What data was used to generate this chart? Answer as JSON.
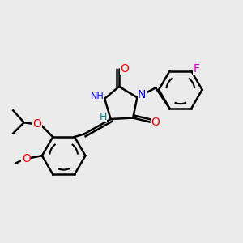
{
  "background_color": "#ebebeb",
  "atom_colors": {
    "C": "#000000",
    "N": "#0000ff",
    "O": "#ff0000",
    "F": "#cc00cc",
    "H_label": "#008080"
  },
  "bond_color": "#000000",
  "bond_width": 1.8,
  "figsize": [
    3.0,
    3.0
  ],
  "dpi": 100
}
